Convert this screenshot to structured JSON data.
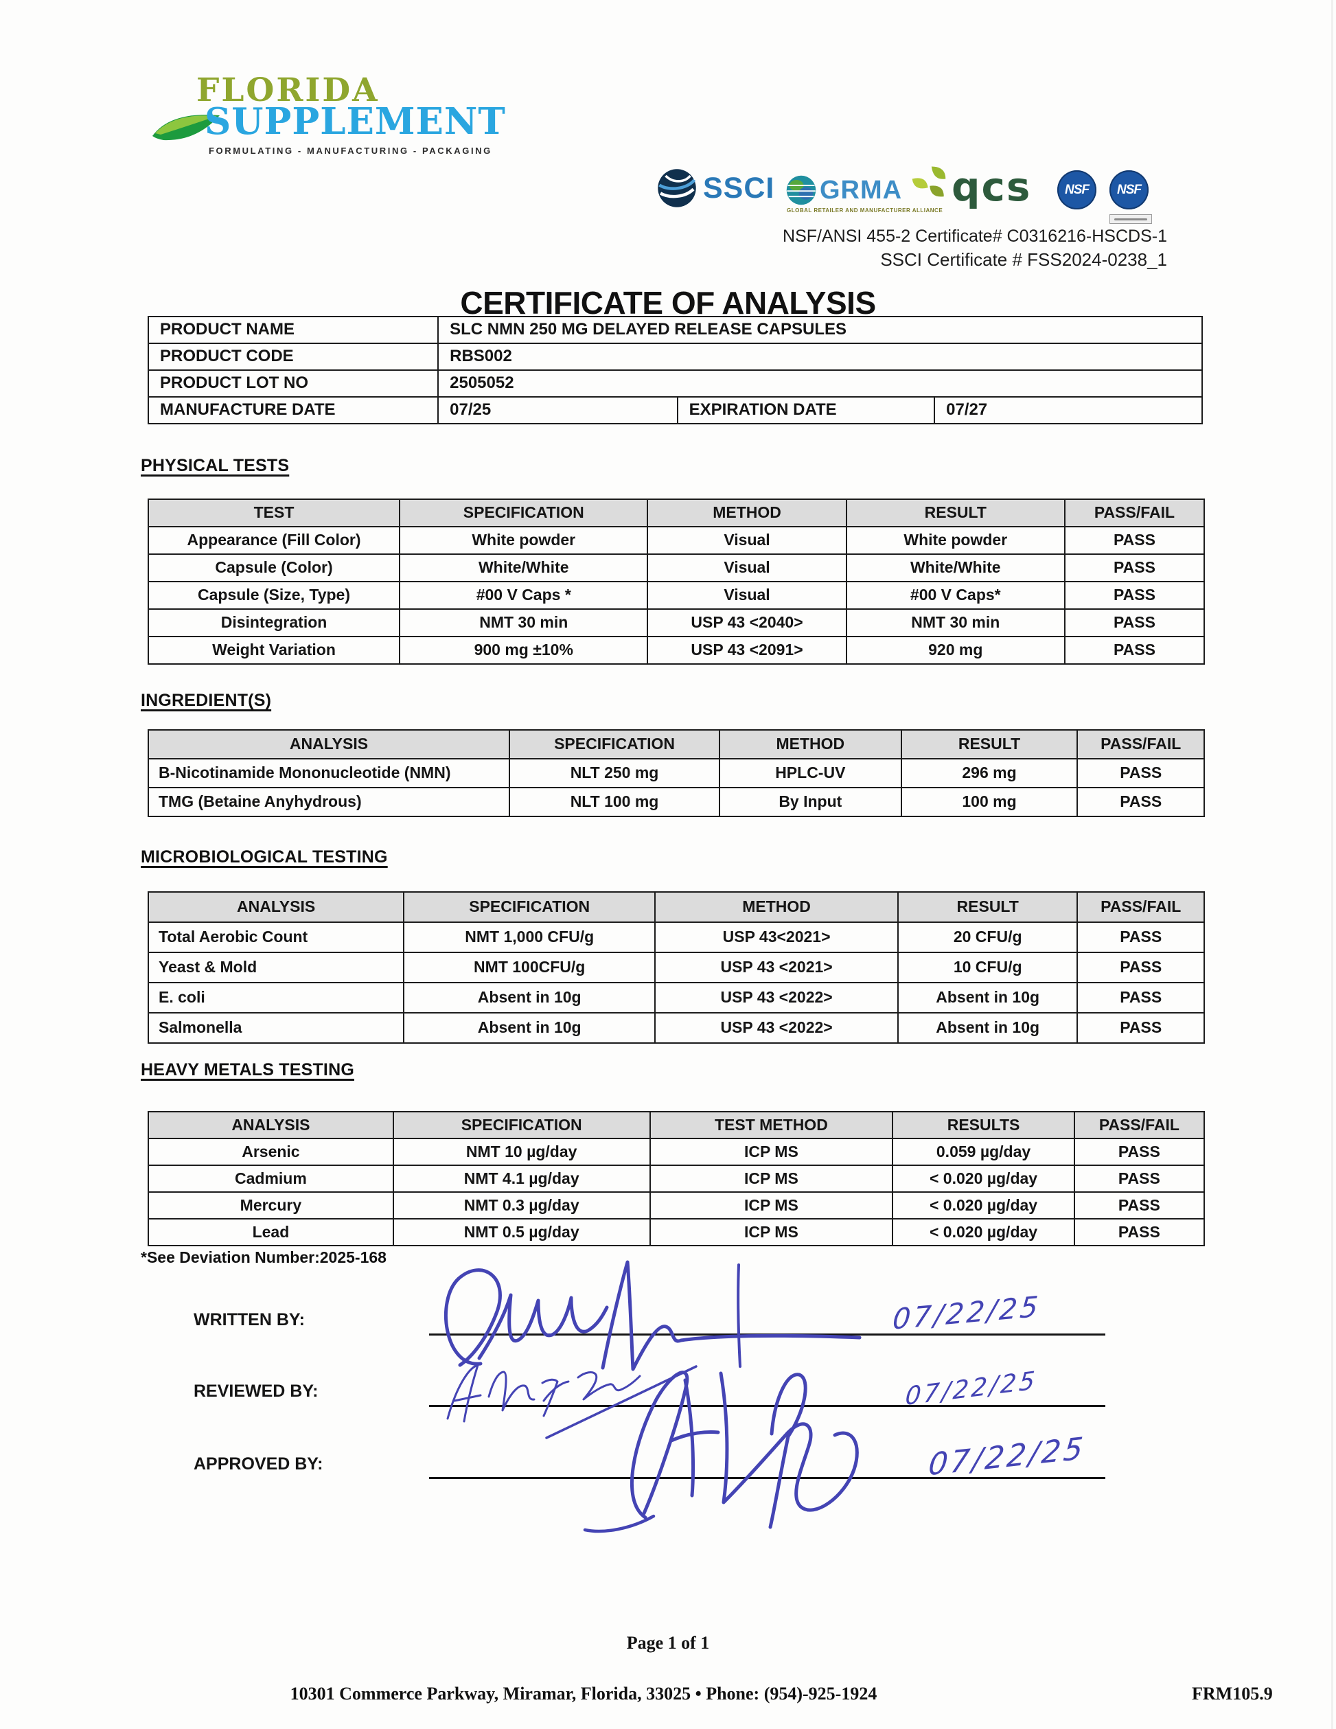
{
  "page": {
    "title": "CERTIFICATE OF ANALYSIS",
    "page_number": "Page 1 of 1",
    "footer_address": "10301 Commerce Parkway, Miramar, Florida, 33025 •  Phone: (954)-925-1924",
    "form_number": "FRM105.9",
    "deviation_note": "*See Deviation Number:2025-168"
  },
  "logo": {
    "line1": "FLORIDA",
    "line2": "SUPPLEMENT",
    "tagline": "FORMULATING - MANUFACTURING - PACKAGING",
    "colors": {
      "line1": "#8fa62e",
      "line2": "#2aa6e0",
      "leaf_dark": "#1d9b3e",
      "leaf_light": "#8dc63f"
    }
  },
  "certifications": {
    "ssci_label": "SSCI",
    "grma_label": "GRMA",
    "grma_caption": "GLOBAL RETAILER AND MANUFACTURER ALLIANCE",
    "qcs_label": "qcs",
    "nsf_label": "NSF",
    "nsf_certificate_line": "NSF/ANSI 455-2 Certificate# C0316216-HSCDS-1",
    "ssci_certificate_line": "SSCI Certificate # FSS2024-0238_1"
  },
  "product_info": {
    "name_label": "PRODUCT NAME",
    "name_value": "SLC NMN 250 MG DELAYED RELEASE CAPSULES",
    "code_label": "PRODUCT CODE",
    "code_value": "RBS002",
    "lot_label": "PRODUCT LOT NO",
    "lot_value": "2505052",
    "mfg_label": "MANUFACTURE DATE",
    "mfg_value": "07/25",
    "exp_label": "EXPIRATION DATE",
    "exp_value": "07/27"
  },
  "sections": [
    {
      "id": "physical-tests",
      "heading": "PHYSICAL TESTS",
      "headers": [
        "TEST",
        "SPECIFICATION",
        "METHOD",
        "RESULT",
        "PASS/FAIL"
      ],
      "rows": [
        [
          "Appearance (Fill Color)",
          "White powder",
          "Visual",
          "White powder",
          "PASS"
        ],
        [
          "Capsule (Color)",
          "White/White",
          "Visual",
          "White/White",
          "PASS"
        ],
        [
          "Capsule (Size, Type)",
          "#00 V Caps *",
          "Visual",
          "#00 V Caps*",
          "PASS"
        ],
        [
          "Disintegration",
          "NMT 30 min",
          "USP 43 <2040>",
          "NMT 30 min",
          "PASS"
        ],
        [
          "Weight Variation",
          "900 mg ±10%",
          "USP 43 <2091>",
          "920 mg",
          "PASS"
        ]
      ]
    },
    {
      "id": "ingredients",
      "heading": "INGREDIENT(S)",
      "headers": [
        "ANALYSIS",
        "SPECIFICATION",
        "METHOD",
        "RESULT",
        "PASS/FAIL"
      ],
      "rows": [
        [
          "B-Nicotinamide Mononucleotide (NMN)",
          "NLT 250 mg",
          "HPLC-UV",
          "296 mg",
          "PASS"
        ],
        [
          "TMG (Betaine Anyhydrous)",
          "NLT 100 mg",
          "By Input",
          "100 mg",
          "PASS"
        ]
      ]
    },
    {
      "id": "microbiological-testing",
      "heading": "MICROBIOLOGICAL TESTING",
      "headers": [
        "ANALYSIS",
        "SPECIFICATION",
        "METHOD",
        "RESULT",
        "PASS/FAIL"
      ],
      "rows": [
        [
          "Total Aerobic Count",
          "NMT 1,000 CFU/g",
          "USP 43<2021>",
          "20 CFU/g",
          "PASS"
        ],
        [
          "Yeast & Mold",
          "NMT 100CFU/g",
          "USP 43 <2021>",
          "10 CFU/g",
          "PASS"
        ],
        [
          "E. coli",
          "Absent in 10g",
          "USP 43 <2022>",
          "Absent in 10g",
          "PASS"
        ],
        [
          "Salmonella",
          "Absent in 10g",
          "USP 43 <2022>",
          "Absent in 10g",
          "PASS"
        ]
      ]
    },
    {
      "id": "heavy-metals-testing",
      "heading": "HEAVY METALS TESTING",
      "headers": [
        "ANALYSIS",
        "SPECIFICATION",
        "TEST METHOD",
        "RESULTS",
        "PASS/FAIL"
      ],
      "rows": [
        [
          "Arsenic",
          "NMT 10 µg/day",
          "ICP MS",
          "0.059 µg/day",
          "PASS"
        ],
        [
          "Cadmium",
          "NMT 4.1 µg/day",
          "ICP MS",
          "< 0.020 µg/day",
          "PASS"
        ],
        [
          "Mercury",
          "NMT 0.3 µg/day",
          "ICP MS",
          "< 0.020 µg/day",
          "PASS"
        ],
        [
          "Lead",
          "NMT 0.5 µg/day",
          "ICP MS",
          "< 0.020 µg/day",
          "PASS"
        ]
      ]
    }
  ],
  "signatures": {
    "ink_color": "#4343b2",
    "written": {
      "label": "WRITTEN BY:",
      "date": "07/22/25"
    },
    "reviewed": {
      "label": "REVIEWED BY:",
      "date": "07/22/25"
    },
    "approved": {
      "label": "APPROVED BY:",
      "date": "07/22/25"
    }
  }
}
